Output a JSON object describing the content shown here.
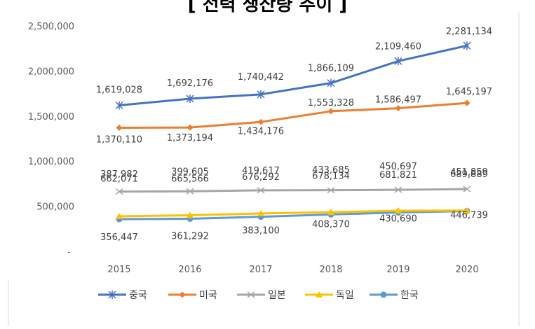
{
  "chart_data": {
    "type": "line",
    "title": "[ 전력 생산량 추이 ]",
    "categories": [
      "2015",
      "2016",
      "2017",
      "2018",
      "2019",
      "2020"
    ],
    "ylim": [
      0,
      2500000
    ],
    "y_ticks": [
      {
        "value": 0,
        "label": "-"
      },
      {
        "value": 500000,
        "label": "500,000"
      },
      {
        "value": 1000000,
        "label": "1,000,000"
      },
      {
        "value": 1500000,
        "label": "1,500,000"
      },
      {
        "value": 2000000,
        "label": "2,000,000"
      },
      {
        "value": 2500000,
        "label": "2,500,000"
      }
    ],
    "grid": false,
    "legend_position": "bottom",
    "series": [
      {
        "name": "중국",
        "color": "#4472c4",
        "marker": "star",
        "values": [
          1619028,
          1692176,
          1740442,
          1866109,
          2109460,
          2281134
        ],
        "labels": [
          "1,619,028",
          "1,692,176",
          "1,740,442",
          "1,866,109",
          "2,109,460",
          "2,281,134"
        ]
      },
      {
        "name": "미국",
        "color": "#ed7d31",
        "marker": "diamond",
        "values": [
          1370110,
          1373194,
          1434176,
          1553328,
          1586497,
          1645197
        ],
        "labels": [
          "1,370,110",
          "1,373,194",
          "1,434,176",
          "1,553,328",
          "1,586,497",
          "1,645,197"
        ]
      },
      {
        "name": "일본",
        "color": "#a5a5a5",
        "marker": "x",
        "values": [
          662071,
          665566,
          676292,
          678134,
          681821,
          689889
        ],
        "labels": [
          "662,071",
          "665,566",
          "676,292",
          "678,134",
          "681,821",
          "689,889"
        ]
      },
      {
        "name": "독일",
        "color": "#ffc000",
        "marker": "triangle",
        "values": [
          387982,
          399605,
          419617,
          433685,
          450697,
          451859
        ],
        "labels": [
          "387,982",
          "399,605",
          "419,617",
          "433,685",
          "450,697",
          "451,859"
        ]
      },
      {
        "name": "한국",
        "color": "#5b9bd5",
        "marker": "circle",
        "values": [
          356447,
          361292,
          383100,
          408370,
          430690,
          446739
        ],
        "labels": [
          "356,447",
          "361,292",
          "383,100",
          "408,370",
          "430,690",
          "446,739"
        ]
      }
    ]
  }
}
